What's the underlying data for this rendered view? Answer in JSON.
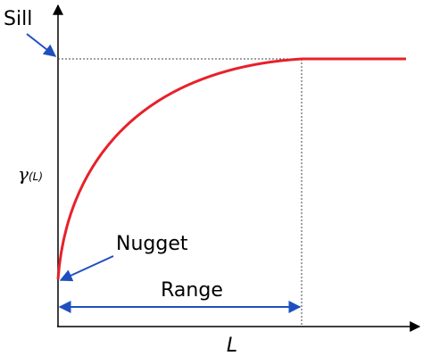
{
  "labels": {
    "sill": "Sill",
    "nugget": "Nugget",
    "range": "Range",
    "y_axis": "γ",
    "y_axis_sub": "(L)",
    "x_axis": "L"
  }
}
